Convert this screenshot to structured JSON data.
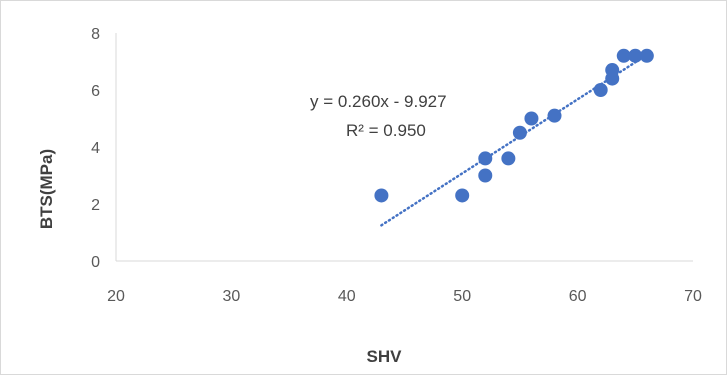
{
  "chart_data": {
    "type": "scatter",
    "title": "",
    "xlabel": "SHV",
    "ylabel": "BTS(MPa)",
    "xlim": [
      20,
      70
    ],
    "ylim": [
      0,
      8
    ],
    "xticks": [
      20,
      30,
      40,
      50,
      60,
      70
    ],
    "yticks": [
      0,
      2,
      4,
      6,
      8
    ],
    "grid": false,
    "legend": "none",
    "series": [
      {
        "color": "#4472c4",
        "points": [
          {
            "x": 43,
            "y": 2.3
          },
          {
            "x": 50,
            "y": 2.3
          },
          {
            "x": 52,
            "y": 3.0
          },
          {
            "x": 52,
            "y": 3.6
          },
          {
            "x": 54,
            "y": 3.6
          },
          {
            "x": 55,
            "y": 4.5
          },
          {
            "x": 56,
            "y": 5.0
          },
          {
            "x": 58,
            "y": 5.1
          },
          {
            "x": 62,
            "y": 6.0
          },
          {
            "x": 63,
            "y": 6.4
          },
          {
            "x": 63,
            "y": 6.7
          },
          {
            "x": 64,
            "y": 7.2
          },
          {
            "x": 65,
            "y": 7.2
          },
          {
            "x": 66,
            "y": 7.2
          }
        ]
      }
    ],
    "trendline": {
      "type": "linear",
      "slope": 0.26,
      "intercept": -9.927,
      "x_range": [
        43,
        66
      ],
      "color": "#4472c4",
      "style": "dotted",
      "equation_label": "y = 0.260x - 9.927",
      "r2_label": "R² = 0.950"
    },
    "axis_color": "#d9d9d9"
  }
}
